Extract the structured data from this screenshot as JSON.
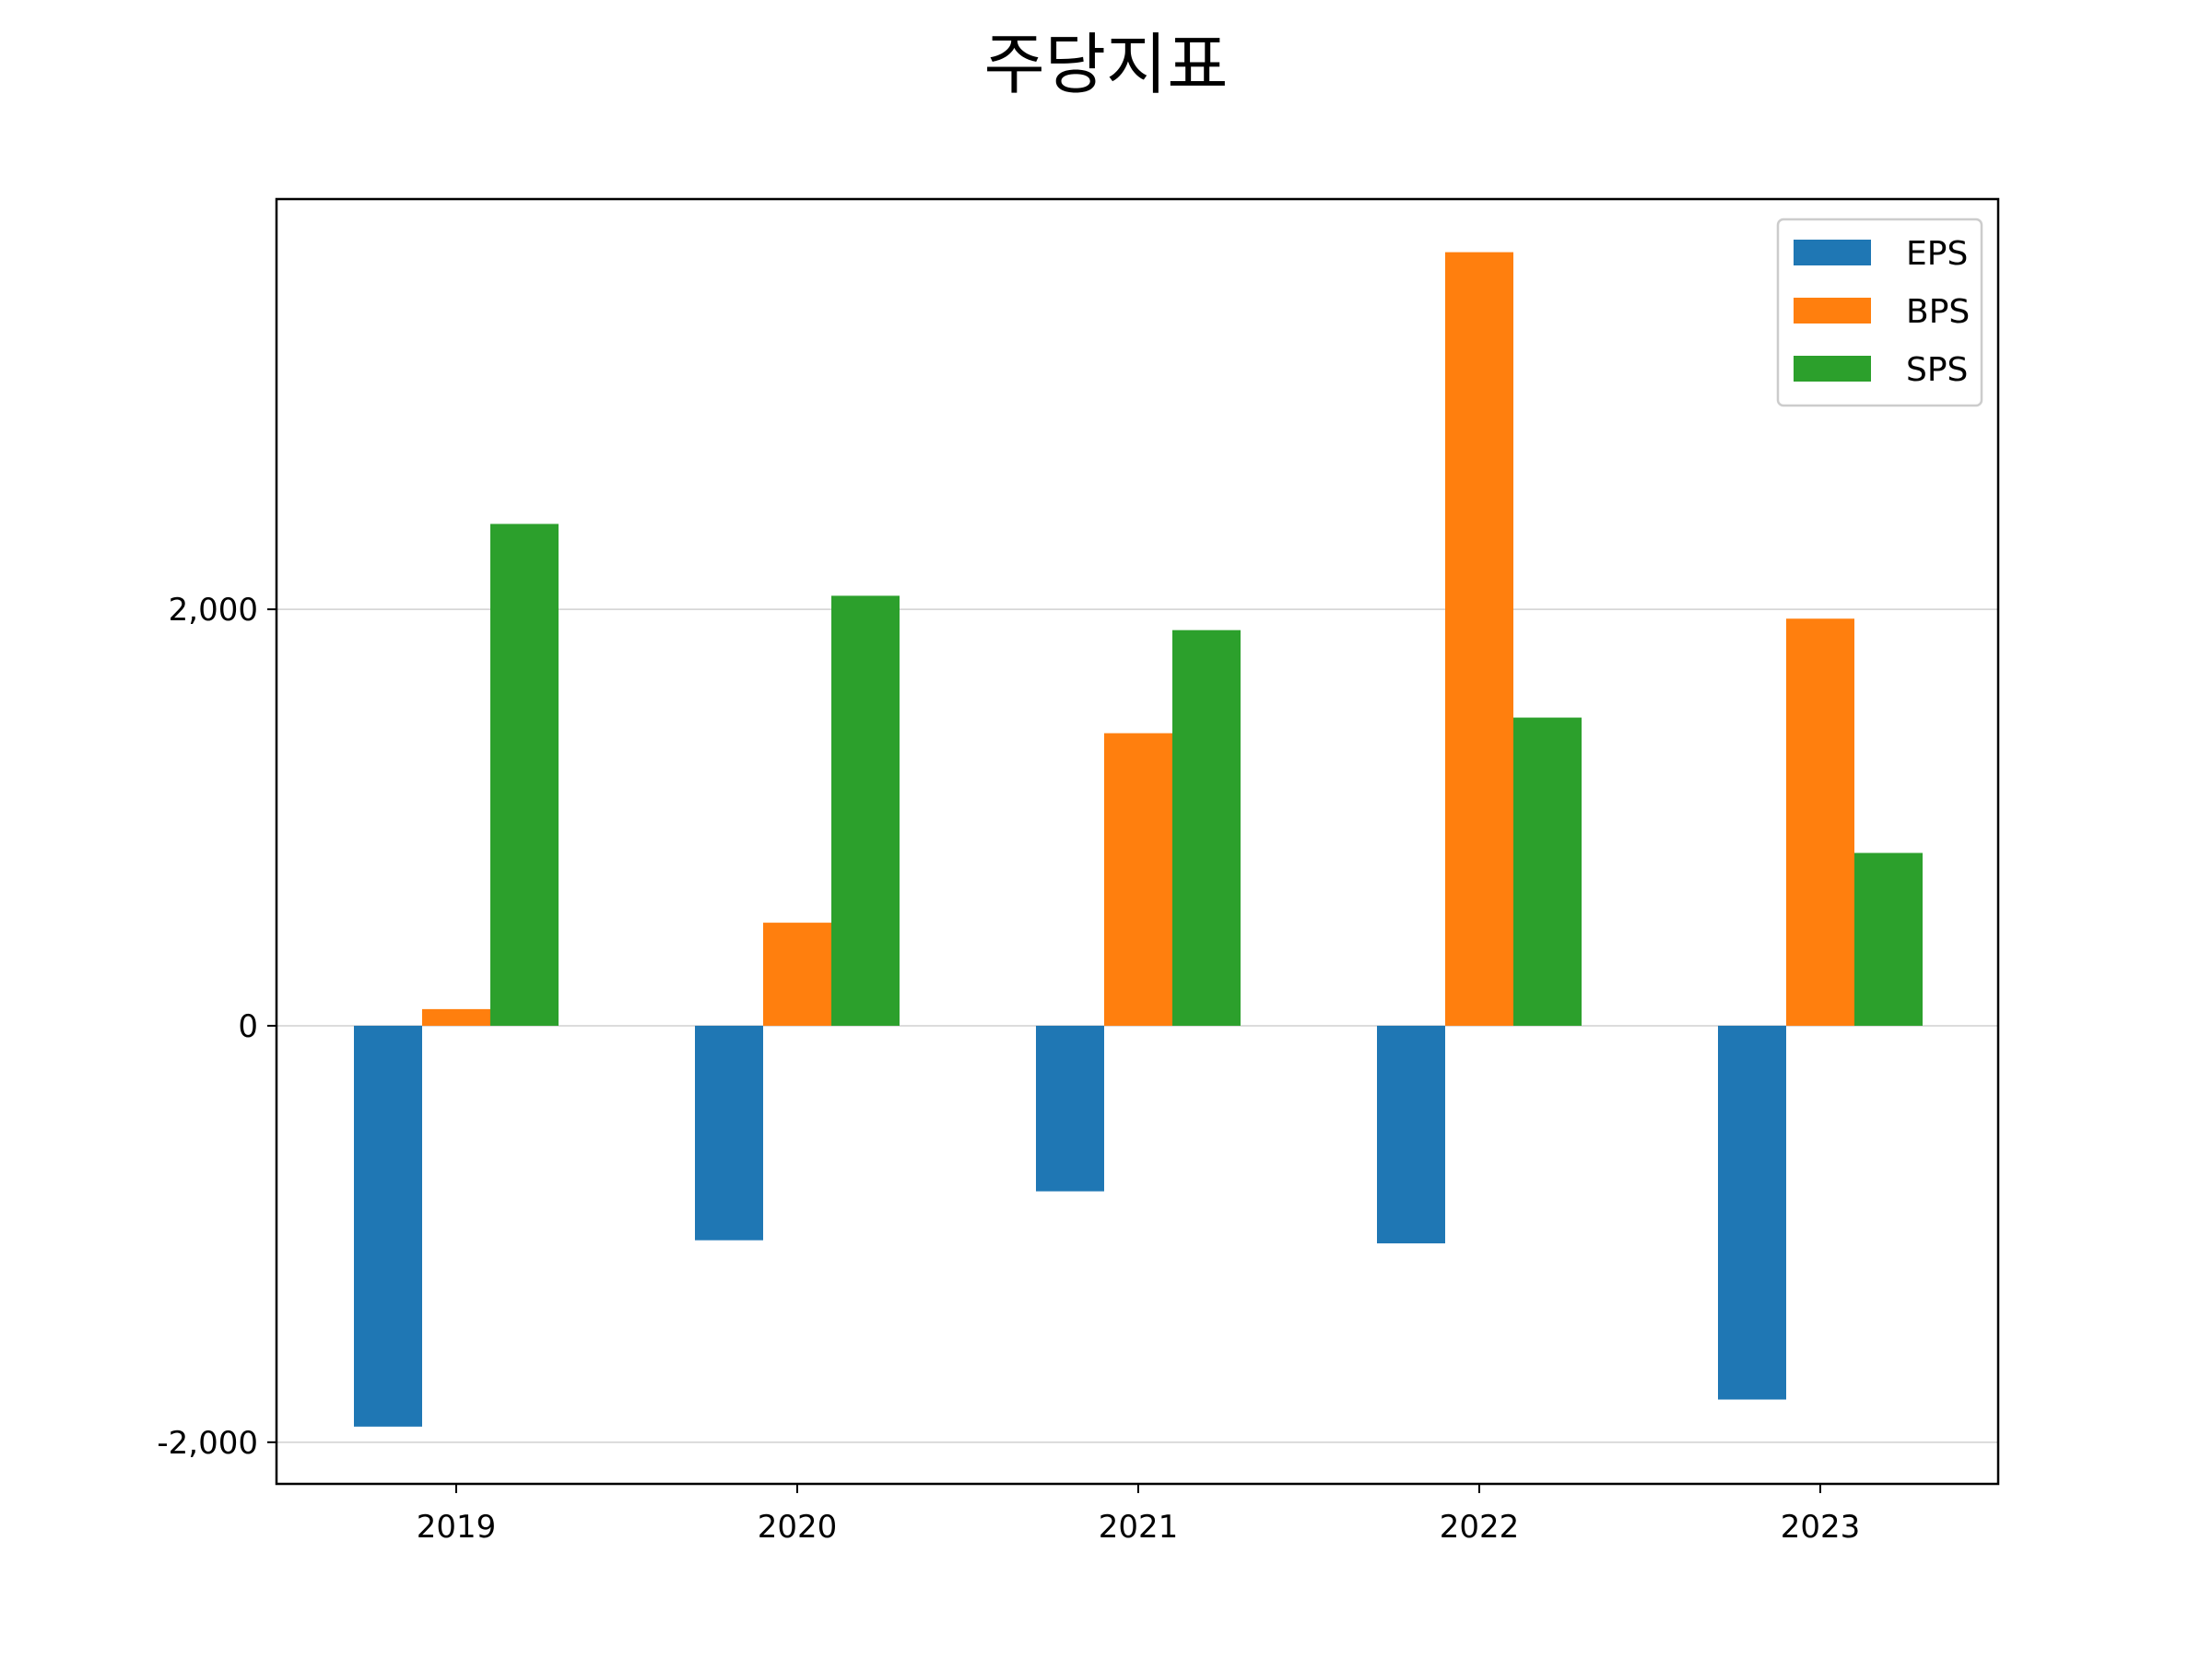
{
  "chart_data": {
    "type": "bar",
    "title": "주당지표",
    "xlabel": "",
    "ylabel": "",
    "categories": [
      "2019",
      "2020",
      "2021",
      "2022",
      "2023"
    ],
    "series": [
      {
        "name": "EPS",
        "color": "#1f77b4",
        "values": [
          -1925,
          -1030,
          -795,
          -1045,
          -1795
        ]
      },
      {
        "name": "BPS",
        "color": "#ff7f0e",
        "values": [
          80,
          495,
          1405,
          3715,
          1955
        ]
      },
      {
        "name": "SPS",
        "color": "#2ca02c",
        "values": [
          2410,
          2065,
          1900,
          1480,
          830
        ]
      }
    ],
    "ylim": [
      -2200,
      3970
    ],
    "yticks": [
      -2000,
      0,
      2000
    ],
    "ytick_labels": [
      "-2,000",
      "0",
      "2,000"
    ],
    "grid": "y",
    "legend": "top-right"
  }
}
